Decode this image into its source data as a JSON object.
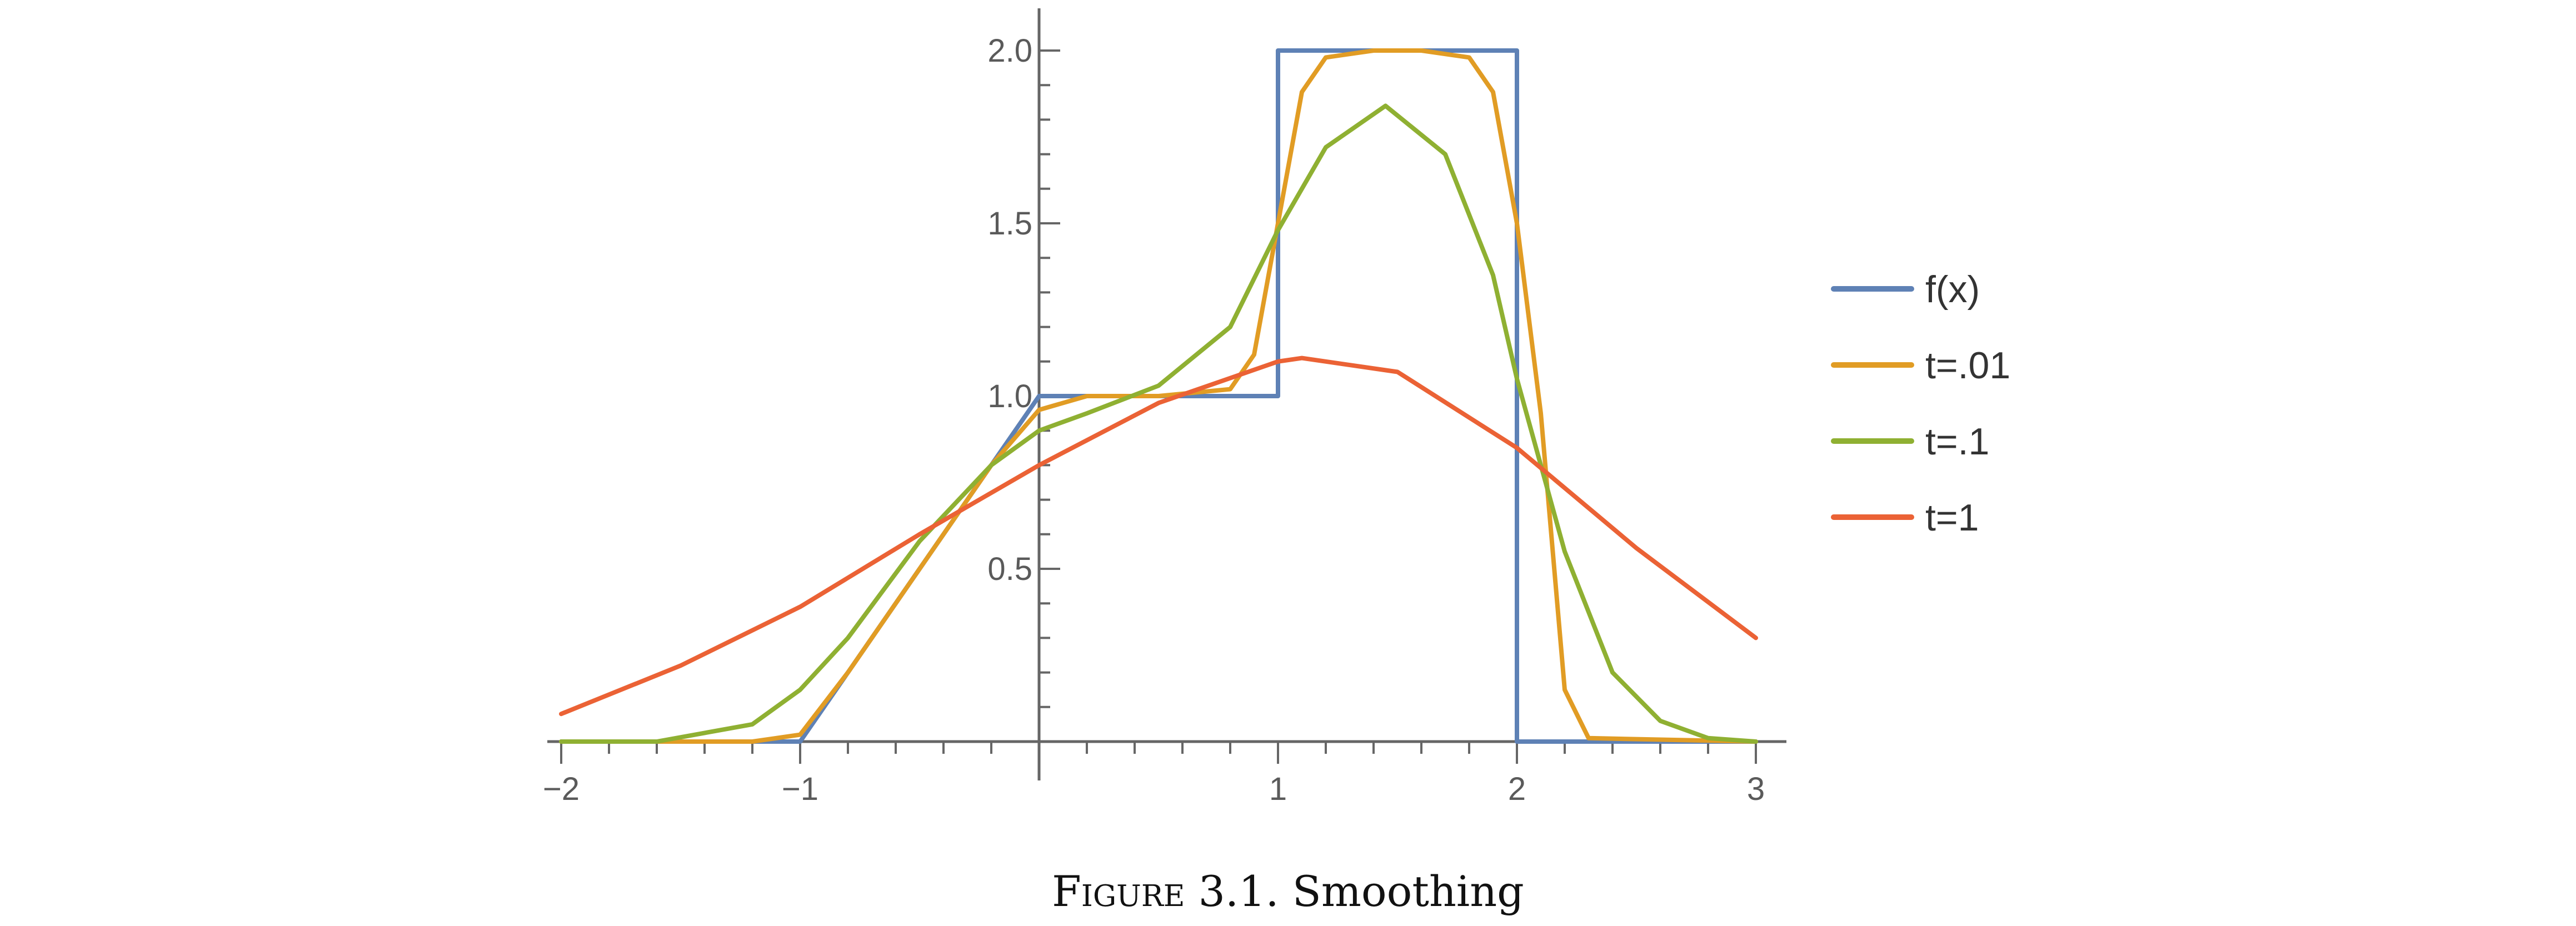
{
  "chart_data": {
    "type": "line",
    "xlim": [
      -2,
      3
    ],
    "ylim": [
      0,
      2.1
    ],
    "x_ticks": [
      "-2",
      "-1",
      "1",
      "2",
      "3"
    ],
    "y_ticks": [
      "0.5",
      "1.0",
      "1.5",
      "2.0"
    ],
    "legend_position": "right",
    "series": [
      {
        "name": "f(x)",
        "color": "#5e81b5",
        "points": [
          [
            -2,
            0
          ],
          [
            -1,
            0
          ],
          [
            0,
            1
          ],
          [
            1,
            1
          ],
          [
            1,
            2
          ],
          [
            2,
            2
          ],
          [
            2,
            0
          ],
          [
            3,
            0
          ]
        ]
      },
      {
        "name": "t=.01",
        "color": "#e19c24",
        "points": [
          [
            -2,
            0
          ],
          [
            -1.2,
            0
          ],
          [
            -1.0,
            0.02
          ],
          [
            -0.8,
            0.2
          ],
          [
            -0.5,
            0.5
          ],
          [
            -0.2,
            0.8
          ],
          [
            0,
            0.96
          ],
          [
            0.2,
            1.0
          ],
          [
            0.5,
            1.0
          ],
          [
            0.8,
            1.02
          ],
          [
            0.9,
            1.12
          ],
          [
            1.0,
            1.5
          ],
          [
            1.1,
            1.88
          ],
          [
            1.2,
            1.98
          ],
          [
            1.4,
            2.0
          ],
          [
            1.6,
            2.0
          ],
          [
            1.8,
            1.98
          ],
          [
            1.9,
            1.88
          ],
          [
            2.0,
            1.5
          ],
          [
            2.1,
            0.95
          ],
          [
            2.2,
            0.15
          ],
          [
            2.3,
            0.01
          ],
          [
            3,
            0
          ]
        ]
      },
      {
        "name": "t=.1",
        "color": "#8fb032",
        "points": [
          [
            -2,
            0
          ],
          [
            -1.6,
            0.0
          ],
          [
            -1.2,
            0.05
          ],
          [
            -1.0,
            0.15
          ],
          [
            -0.8,
            0.3
          ],
          [
            -0.5,
            0.58
          ],
          [
            -0.2,
            0.8
          ],
          [
            0,
            0.9
          ],
          [
            0.2,
            0.95
          ],
          [
            0.5,
            1.03
          ],
          [
            0.8,
            1.2
          ],
          [
            1.0,
            1.48
          ],
          [
            1.2,
            1.72
          ],
          [
            1.45,
            1.84
          ],
          [
            1.7,
            1.7
          ],
          [
            1.9,
            1.35
          ],
          [
            2.0,
            1.05
          ],
          [
            2.2,
            0.55
          ],
          [
            2.4,
            0.2
          ],
          [
            2.6,
            0.06
          ],
          [
            2.8,
            0.01
          ],
          [
            3,
            0
          ]
        ]
      },
      {
        "name": "t=1",
        "color": "#eb6235",
        "points": [
          [
            -2,
            0.08
          ],
          [
            -1.5,
            0.22
          ],
          [
            -1.0,
            0.39
          ],
          [
            -0.5,
            0.6
          ],
          [
            0,
            0.8
          ],
          [
            0.5,
            0.98
          ],
          [
            1.0,
            1.1
          ],
          [
            1.1,
            1.11
          ],
          [
            1.5,
            1.07
          ],
          [
            2.0,
            0.85
          ],
          [
            2.5,
            0.56
          ],
          [
            3.0,
            0.3
          ]
        ]
      }
    ]
  },
  "caption": {
    "label": "Figure",
    "rest": "3.1. Smoothing"
  }
}
